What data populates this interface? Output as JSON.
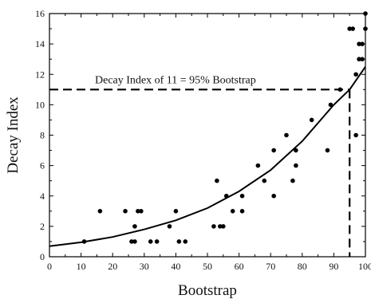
{
  "chart_data": {
    "type": "scatter",
    "title": "",
    "xlabel": "Bootstrap",
    "ylabel": "Decay Index",
    "xlim": [
      0,
      100
    ],
    "ylim": [
      0,
      16
    ],
    "x_ticks": [
      0,
      10,
      20,
      30,
      40,
      50,
      60,
      70,
      80,
      90,
      100
    ],
    "y_ticks": [
      0,
      2,
      4,
      6,
      8,
      10,
      12,
      14,
      16
    ],
    "grid": false,
    "legend": "none",
    "points": [
      [
        11,
        1
      ],
      [
        16,
        3
      ],
      [
        24,
        3
      ],
      [
        26,
        1
      ],
      [
        27,
        1
      ],
      [
        27,
        2
      ],
      [
        28,
        3
      ],
      [
        29,
        3
      ],
      [
        32,
        1
      ],
      [
        34,
        1
      ],
      [
        38,
        2
      ],
      [
        40,
        3
      ],
      [
        41,
        1
      ],
      [
        43,
        1
      ],
      [
        52,
        2
      ],
      [
        53,
        5
      ],
      [
        54,
        2
      ],
      [
        55,
        2
      ],
      [
        56,
        4
      ],
      [
        58,
        3
      ],
      [
        61,
        4
      ],
      [
        61,
        3
      ],
      [
        66,
        6
      ],
      [
        68,
        5
      ],
      [
        71,
        7
      ],
      [
        71,
        4
      ],
      [
        75,
        8
      ],
      [
        77,
        5
      ],
      [
        78,
        6
      ],
      [
        78,
        7
      ],
      [
        83,
        9
      ],
      [
        88,
        7
      ],
      [
        89,
        10
      ],
      [
        92,
        11
      ],
      [
        95,
        15
      ],
      [
        96,
        15
      ],
      [
        97,
        8
      ],
      [
        97,
        12
      ],
      [
        98,
        14
      ],
      [
        98,
        13
      ],
      [
        99,
        14
      ],
      [
        99,
        13
      ],
      [
        100,
        16
      ],
      [
        100,
        15
      ]
    ],
    "fit_curve": {
      "x": [
        0,
        10,
        20,
        30,
        40,
        50,
        60,
        70,
        80,
        90,
        95,
        100
      ],
      "y": [
        0.7,
        0.95,
        1.3,
        1.8,
        2.4,
        3.2,
        4.3,
        5.7,
        7.6,
        10.0,
        11.0,
        12.5
      ]
    },
    "threshold": {
      "x": 95,
      "y": 11,
      "label": "Decay Index of 11 = 95% Bootstrap"
    }
  }
}
